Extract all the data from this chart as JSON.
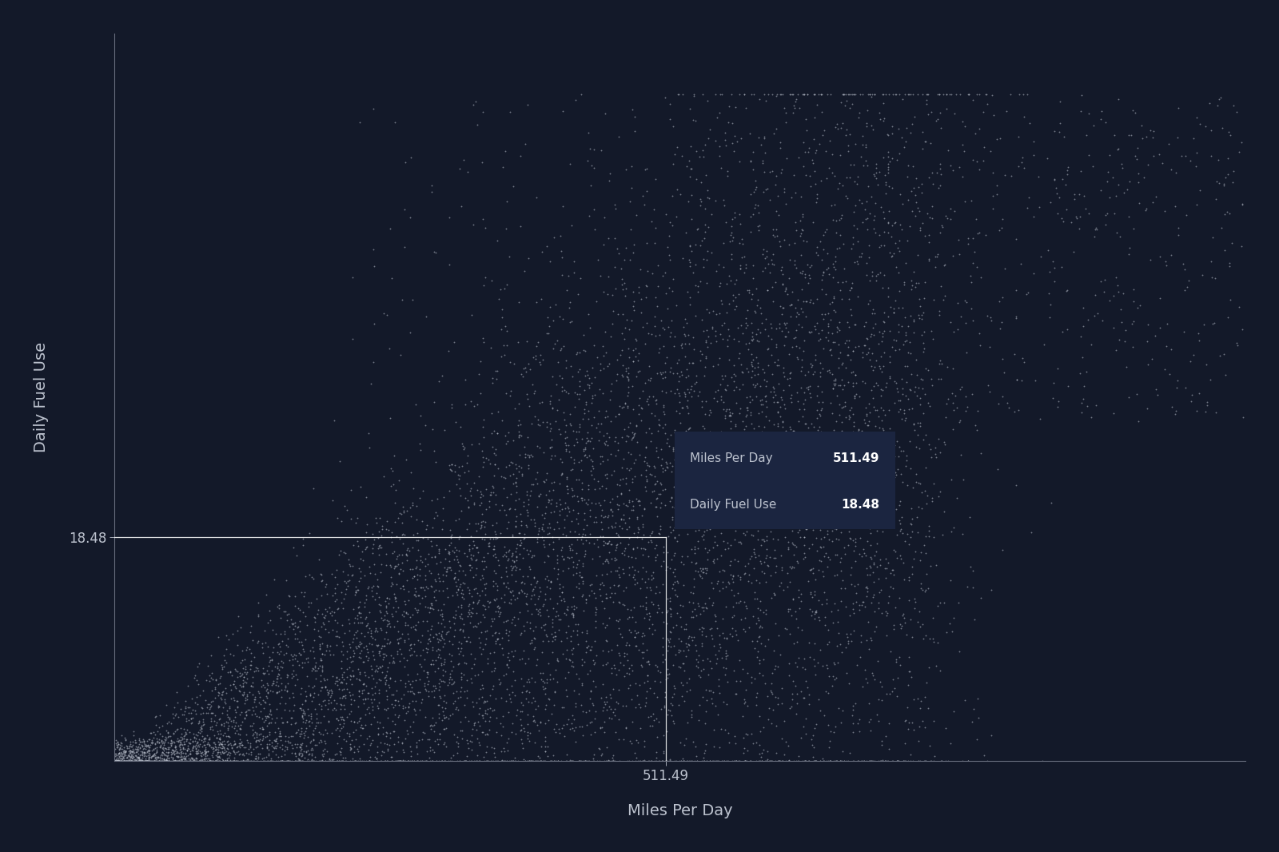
{
  "background_color": "#131929",
  "scatter_color": "#bcc2ce",
  "axis_color": "#6a7080",
  "label_color": "#bcc2ce",
  "tick_label_color": "#bcc2ce",
  "xlabel": "Miles Per Day",
  "ylabel": "Daily Fuel Use",
  "crosshair_x": 511.49,
  "crosshair_y": 18.48,
  "tooltip_bg": "#1b2540",
  "tooltip_label1": "Miles Per Day",
  "tooltip_value1": "511.49",
  "tooltip_label2": "Daily Fuel Use",
  "tooltip_value2": "18.48",
  "n_points": 10000,
  "seed": 42,
  "x_min": 0,
  "x_max": 1050,
  "y_min": 0,
  "y_max": 60,
  "crosshair_linewidth": 0.9,
  "scatter_size": 1.8,
  "scatter_alpha": 0.55
}
